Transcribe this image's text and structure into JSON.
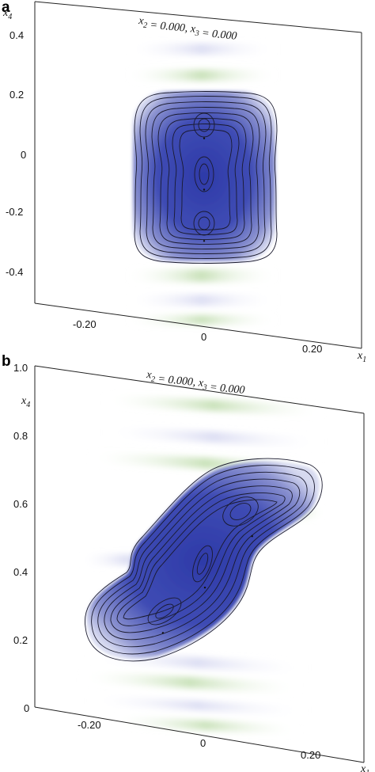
{
  "chart_data": [
    {
      "type": "heatmap",
      "panel_label": "a",
      "title": "x2 = 0.000, x3 = 0.000",
      "xlabel": "x1",
      "ylabel": "x4",
      "xlim": [
        -0.3,
        0.3
      ],
      "ylim": [
        -0.5,
        0.5
      ],
      "xticks": [
        "-0.20",
        "0",
        "0.20"
      ],
      "xtick_values": [
        -0.2,
        0,
        0.2
      ],
      "yticks": [
        "0.4",
        "0.2",
        "0",
        "-0.2",
        "-0.4"
      ],
      "ytick_values": [
        0.4,
        0.2,
        0,
        -0.2,
        -0.4
      ],
      "peaks": [
        {
          "x": 0.0,
          "y": 0.1
        },
        {
          "x": 0.0,
          "y": -0.07
        },
        {
          "x": 0.0,
          "y": -0.24
        }
      ],
      "colors": {
        "positive": "#2e3aa8",
        "negative_fringe": "#a8cc90",
        "contour": "#1a1a2e"
      }
    },
    {
      "type": "heatmap",
      "panel_label": "b",
      "title": "x2 = 0.000, x3 = 0.000",
      "xlabel": "x1",
      "ylabel": "x4",
      "xlim": [
        -0.3,
        0.3
      ],
      "ylim": [
        0,
        1.0
      ],
      "xticks": [
        "-0.20",
        "0",
        "0.20"
      ],
      "xtick_values": [
        -0.2,
        0,
        0.2
      ],
      "yticks": [
        "1.0",
        "0.8",
        "0.6",
        "0.4",
        "0.2",
        "0"
      ],
      "ytick_values": [
        1.0,
        0.8,
        0.6,
        0.4,
        0.2,
        0
      ],
      "peaks": [
        {
          "x": -0.08,
          "y": 0.27
        },
        {
          "x": 0.0,
          "y": 0.42
        },
        {
          "x": 0.09,
          "y": 0.59
        }
      ],
      "colors": {
        "positive": "#2e3aa8",
        "negative_fringe": "#a8cc90",
        "contour": "#1a1a2e"
      }
    }
  ]
}
